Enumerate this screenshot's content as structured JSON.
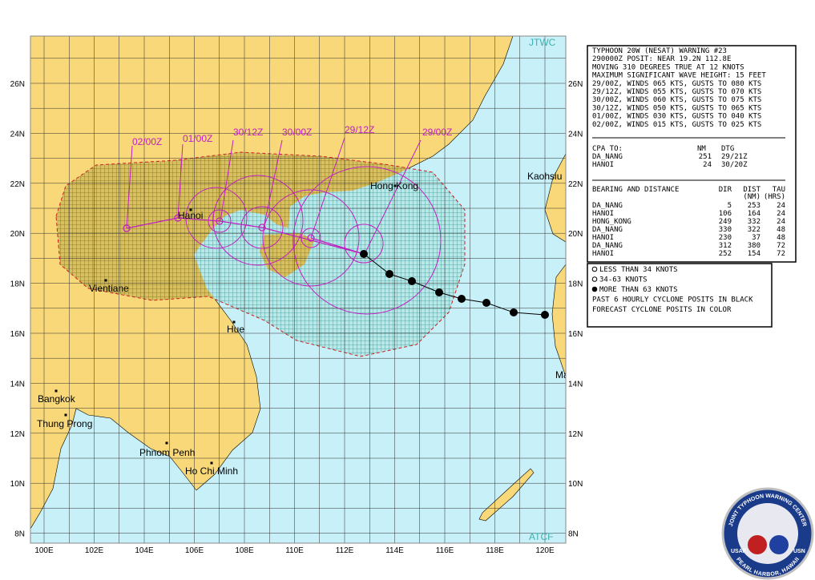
{
  "map": {
    "agency_top": "JTWC",
    "agency_bottom": "ATCF",
    "lat_labels": [
      "26N",
      "24N",
      "22N",
      "20N",
      "18N",
      "16N",
      "14N",
      "12N",
      "10N",
      "8N"
    ],
    "lon_labels": [
      "100E",
      "102E",
      "104E",
      "106E",
      "108E",
      "110E",
      "112E",
      "114E",
      "116E",
      "118E",
      "120E"
    ],
    "forecast_labels": [
      "29/00Z",
      "29/12Z",
      "30/00Z",
      "30/12Z",
      "01/00Z",
      "02/00Z"
    ],
    "places": [
      "Hong Kong",
      "Kaohsiu",
      "Hanoi",
      "Vientiane",
      "Hue",
      "Bangkok",
      "Thung Prong",
      "Phnom Penh",
      "Ho Chi Minh",
      "Ma"
    ]
  },
  "warning": {
    "lines": [
      "TYPHOON 20W (NESAT) WARNING #23",
      "290000Z POSIT: NEAR 19.2N 112.8E",
      "MOVING 310 DEGREES TRUE AT 12 KNOTS",
      "MAXIMUM SIGNIFICANT WAVE HEIGHT: 15 FEET",
      "29/00Z, WINDS 065 KTS, GUSTS TO 080 KTS",
      "29/12Z, WINDS 055 KTS, GUSTS TO 070 KTS",
      "30/00Z, WINDS 060 KTS, GUSTS TO 075 KTS",
      "30/12Z, WINDS 050 KTS, GUSTS TO 065 KTS",
      "01/00Z, WINDS 030 KTS, GUSTS TO 040 KTS",
      "02/00Z, WINDS 015 KTS, GUSTS TO 025 KTS"
    ]
  },
  "cpa": {
    "header": [
      "CPA TO:",
      "NM",
      "DTG"
    ],
    "rows": [
      [
        "DA_NANG",
        "251",
        "29/21Z"
      ],
      [
        "HANOI",
        "24",
        "30/20Z"
      ]
    ]
  },
  "bearing": {
    "header": [
      "BEARING AND DISTANCE",
      "DIR",
      "DIST",
      "TAU"
    ],
    "units": [
      "(NM)",
      "(HRS)"
    ],
    "rows": [
      [
        "DA_NANG",
        "5",
        "253",
        "24"
      ],
      [
        "HANOI",
        "106",
        "164",
        "24"
      ],
      [
        "HONG_KONG",
        "249",
        "332",
        "24"
      ],
      [
        "DA_NANG",
        "330",
        "322",
        "48"
      ],
      [
        "HANOI",
        "230",
        "37",
        "48"
      ],
      [
        "DA_NANG",
        "312",
        "380",
        "72"
      ],
      [
        "HANOI",
        "252",
        "154",
        "72"
      ]
    ]
  },
  "legend": [
    "LESS THAN 34 KNOTS",
    "34-63 KNOTS",
    "MORE THAN 63 KNOTS",
    "PAST 6 HOURLY CYCLONE POSITS IN BLACK",
    "FORECAST CYCLONE POSITS IN COLOR"
  ],
  "seal": {
    "top": "JOINT TYPHOON WARNING CENTER",
    "bottom": "PEARL HARBOR, HAWAII",
    "left": "USAF",
    "right": "USN"
  }
}
